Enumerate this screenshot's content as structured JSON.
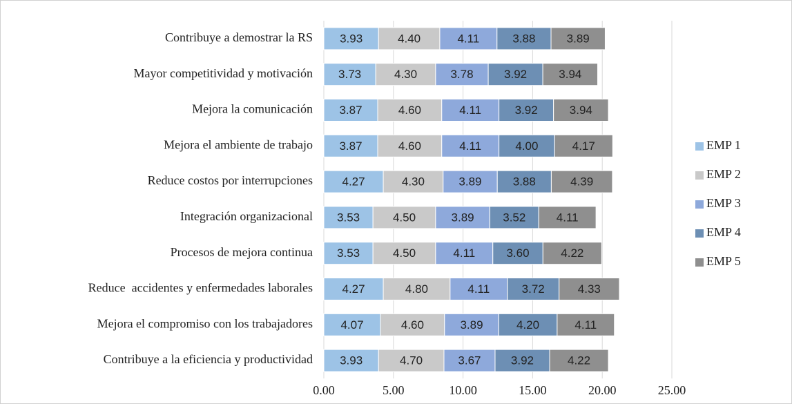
{
  "chart_data": {
    "type": "stacked-bar-horizontal",
    "categories": [
      "Contribuye a demostrar la RS",
      "Mayor competitividad y motivación",
      "Mejora la comunicación",
      "Mejora el ambiente de trabajo",
      "Reduce costos por interrupciones",
      "Integración organizacional",
      "Procesos de mejora continua",
      "Reduce  accidentes y enfermedades laborales",
      "Mejora el compromiso con los trabajadores",
      "Contribuye a la eficiencia y productividad"
    ],
    "series": [
      {
        "name": "EMP 1",
        "color": "#9dc3e6",
        "values": [
          3.93,
          3.73,
          3.87,
          3.87,
          4.27,
          3.53,
          3.53,
          4.27,
          4.07,
          3.93
        ],
        "value_labels": [
          "3.93",
          "3.73",
          "3.87",
          "3.87",
          "4.27",
          "3.53",
          "3.53",
          "4.27",
          "4.07",
          "3.93"
        ]
      },
      {
        "name": "EMP 2",
        "color": "#c9c9c9",
        "values": [
          4.4,
          4.3,
          4.6,
          4.6,
          4.3,
          4.5,
          4.5,
          4.8,
          4.6,
          4.7
        ],
        "value_labels": [
          "4.40",
          "4.30",
          "4.60",
          "4.60",
          "4.30",
          "4.50",
          "4.50",
          "4.80",
          "4.60",
          "4.70"
        ]
      },
      {
        "name": "EMP 3",
        "color": "#8ea9db",
        "values": [
          4.11,
          3.78,
          4.11,
          4.11,
          3.89,
          3.89,
          4.11,
          4.11,
          3.89,
          3.67
        ],
        "value_labels": [
          "4.11",
          "3.78",
          "4.11",
          "4.11",
          "3.89",
          "3.89",
          "4.11",
          "4.11",
          "3.89",
          "3.67"
        ]
      },
      {
        "name": "EMP 4",
        "color": "#6d8fb4",
        "values": [
          3.88,
          3.92,
          3.92,
          4.0,
          3.88,
          3.52,
          3.6,
          3.72,
          4.2,
          3.92
        ],
        "value_labels": [
          "3.88",
          "3.92",
          "3.92",
          "4.00",
          "3.88",
          "3.52",
          "3.60",
          "3.72",
          "4.20",
          "3.92"
        ]
      },
      {
        "name": "EMP 5",
        "color": "#8f8f8f",
        "values": [
          3.89,
          3.94,
          3.94,
          4.17,
          4.39,
          4.11,
          4.22,
          4.33,
          4.11,
          4.22
        ],
        "value_labels": [
          "3.89",
          "3.94",
          "3.94",
          "4.17",
          "4.39",
          "4.11",
          "4.22",
          "4.33",
          "4.11",
          "4.22"
        ]
      }
    ],
    "xlim": [
      0,
      25
    ],
    "xticks": [
      {
        "value": 0,
        "label": "0.00"
      },
      {
        "value": 5,
        "label": "5.00"
      },
      {
        "value": 10,
        "label": "10.00"
      },
      {
        "value": 15,
        "label": "15.00"
      },
      {
        "value": 20,
        "label": "20.00"
      },
      {
        "value": 25,
        "label": "25.00"
      }
    ],
    "grid": true,
    "legend": "right"
  }
}
